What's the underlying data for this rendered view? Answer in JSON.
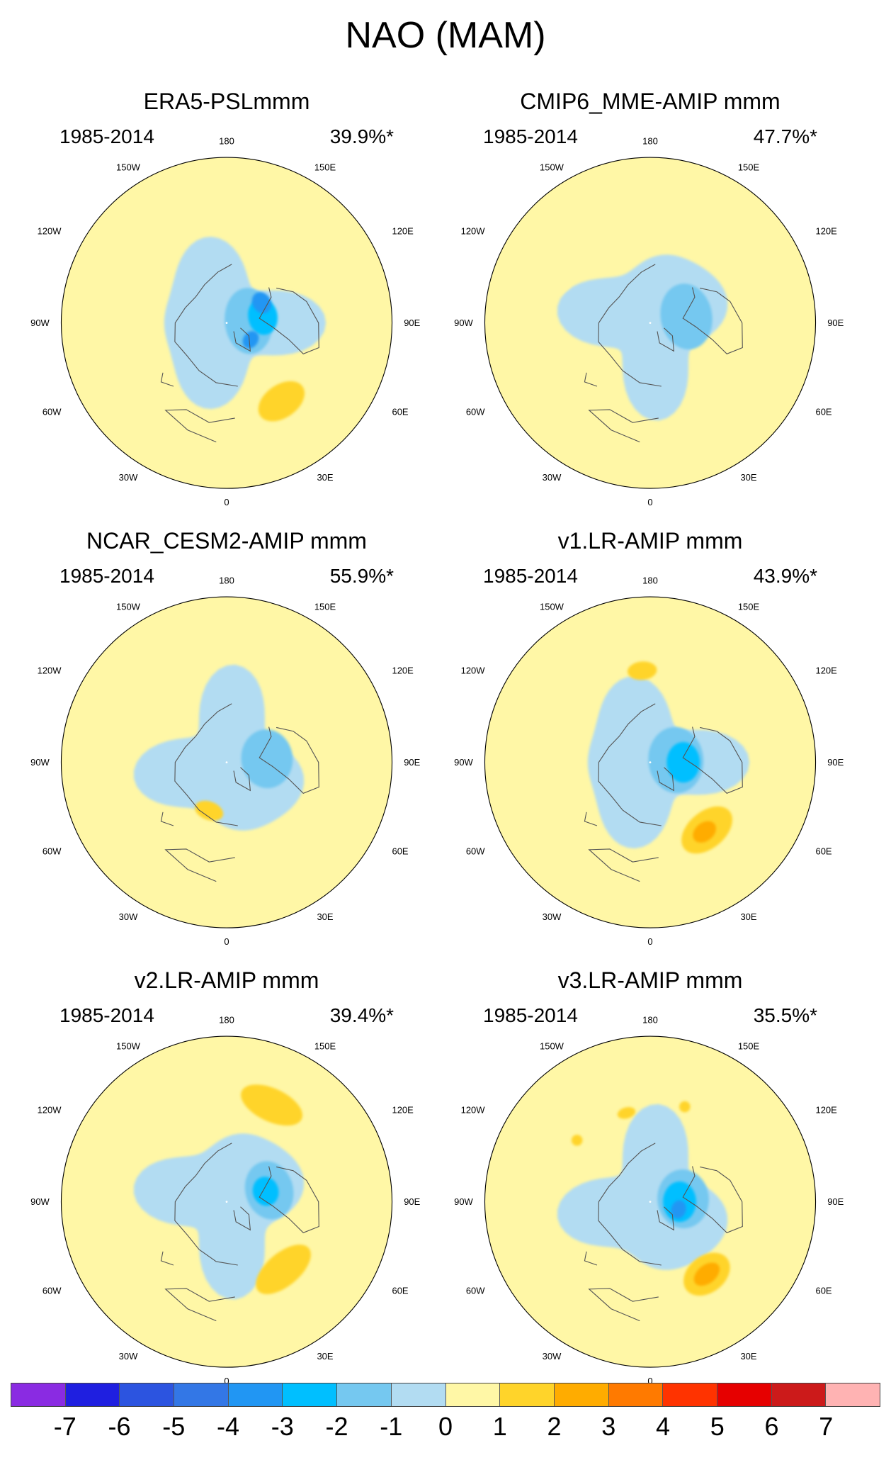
{
  "figure_title": "NAO (MAM)",
  "palette": {
    "-7": "#8a2be2",
    "-6": "#1f1fe0",
    "-5": "#2c54e0",
    "-4": "#3377e6",
    "-3": "#2196f3",
    "-2": "#00bfff",
    "-1": "#75c8f0",
    "0": "#b2dcf2",
    "1": "#fff7a6",
    "2": "#ffd42a",
    "3": "#ffac00",
    "4": "#ff7a00",
    "5": "#ff3300",
    "6": "#e60000",
    "7": "#cc1a1a",
    "8": "#ffb3b3"
  },
  "colorbar": {
    "colors": [
      "#8a2be2",
      "#1f1fe0",
      "#2c54e0",
      "#3377e6",
      "#2196f3",
      "#00bfff",
      "#75c8f0",
      "#b2dcf2",
      "#fff7a6",
      "#ffd42a",
      "#ffac00",
      "#ff7a00",
      "#ff3300",
      "#e60000",
      "#cc1a1a",
      "#ffb3b3"
    ],
    "tick_labels": [
      "-7",
      "-6",
      "-5",
      "-4",
      "-3",
      "-2",
      "-1",
      "0",
      "1",
      "2",
      "3",
      "4",
      "5",
      "6",
      "7"
    ]
  },
  "longitude_labels": {
    "top": "180",
    "upper_left": "150W",
    "upper_right": "150E",
    "left_upper": "120W",
    "right_upper": "120E",
    "left": "90W",
    "right": "90E",
    "left_lower": "60W",
    "right_lower": "60E",
    "lower_left": "30W",
    "lower_right": "30E",
    "bottom": "0"
  },
  "panels": [
    {
      "title": "ERA5-PSLmmm",
      "period": "1985-2014",
      "explained_variance": "39.9%*",
      "blobs": [
        {
          "lat": 12,
          "lon": 265,
          "rx": 18,
          "ry": 13,
          "level": -1
        },
        {
          "lat": 20,
          "lon": 260,
          "rx": 10,
          "ry": 8,
          "level": -2
        },
        {
          "lat": 16,
          "lon": 305,
          "rx": 5,
          "ry": 4,
          "level": -3
        },
        {
          "lat": 22,
          "lon": 240,
          "rx": 6,
          "ry": 5,
          "level": -3
        },
        {
          "lat": 52,
          "lon": 325,
          "rx": 14,
          "ry": 9,
          "level": 2
        },
        {
          "lat": 60,
          "lon": 200,
          "rx": 18,
          "ry": 7,
          "level": 1
        },
        {
          "lat": 55,
          "lon": 115,
          "rx": 12,
          "ry": 10,
          "level": 1
        },
        {
          "lat": 62,
          "lon": 130,
          "rx": 18,
          "ry": 6,
          "level": 1
        }
      ],
      "background_level": 0,
      "outer_level": 1
    },
    {
      "title": "CMIP6_MME-AMIP  mmm",
      "period": "1985-2014",
      "explained_variance": "47.7%*",
      "blobs": [
        {
          "lat": 20,
          "lon": 260,
          "rx": 18,
          "ry": 14,
          "level": -1
        },
        {
          "lat": 55,
          "lon": 120,
          "rx": 14,
          "ry": 8,
          "level": 1
        }
      ],
      "background_level": 0,
      "outer_level": 1
    },
    {
      "title": "NCAR_CESM2-AMIP  mmm",
      "period": "1985-2014",
      "explained_variance": "55.9%*",
      "blobs": [
        {
          "lat": 22,
          "lon": 265,
          "rx": 16,
          "ry": 14,
          "level": -1
        },
        {
          "lat": 28,
          "lon": 20,
          "rx": 8,
          "ry": 5,
          "level": 2
        }
      ],
      "background_level": 0,
      "outer_level": 1
    },
    {
      "title": "v1.LR-AMIP  mmm",
      "period": "1985-2014",
      "explained_variance": "43.9%*",
      "blobs": [
        {
          "lat": 14,
          "lon": 265,
          "rx": 18,
          "ry": 15,
          "level": -1
        },
        {
          "lat": 18,
          "lon": 270,
          "rx": 11,
          "ry": 9,
          "level": -2
        },
        {
          "lat": 48,
          "lon": 320,
          "rx": 16,
          "ry": 10,
          "level": 2
        },
        {
          "lat": 48,
          "lon": 322,
          "rx": 7,
          "ry": 5,
          "level": 3
        },
        {
          "lat": 50,
          "lon": 175,
          "rx": 8,
          "ry": 5,
          "level": 2
        }
      ],
      "background_level": 0,
      "outer_level": 1
    },
    {
      "title": "v2.LR-AMIP  mmm",
      "period": "1985-2014",
      "explained_variance": "39.4%*",
      "blobs": [
        {
          "lat": 24,
          "lon": 255,
          "rx": 16,
          "ry": 13,
          "level": -1
        },
        {
          "lat": 22,
          "lon": 255,
          "rx": 8,
          "ry": 7,
          "level": -2
        },
        {
          "lat": 48,
          "lon": 320,
          "rx": 18,
          "ry": 9,
          "level": 2
        },
        {
          "lat": 58,
          "lon": 205,
          "rx": 18,
          "ry": 9,
          "level": 2
        }
      ],
      "background_level": 0,
      "outer_level": 1
    },
    {
      "title": "v3.LR-AMIP  mmm",
      "period": "1985-2014",
      "explained_variance": "35.5%*",
      "blobs": [
        {
          "lat": 18,
          "lon": 265,
          "rx": 16,
          "ry": 14,
          "level": -1
        },
        {
          "lat": 16,
          "lon": 270,
          "rx": 11,
          "ry": 9,
          "level": -2
        },
        {
          "lat": 16,
          "lon": 285,
          "rx": 5,
          "ry": 4,
          "level": -3
        },
        {
          "lat": 50,
          "lon": 322,
          "rx": 14,
          "ry": 10,
          "level": 2
        },
        {
          "lat": 50,
          "lon": 322,
          "rx": 8,
          "ry": 5,
          "level": 3
        },
        {
          "lat": 50,
          "lon": 165,
          "rx": 5,
          "ry": 3,
          "level": 2
        },
        {
          "lat": 55,
          "lon": 200,
          "rx": 3,
          "ry": 3,
          "level": 2
        },
        {
          "lat": 52,
          "lon": 130,
          "rx": 3,
          "ry": 3,
          "level": 2
        }
      ],
      "background_level": 0,
      "outer_level": 1
    }
  ]
}
